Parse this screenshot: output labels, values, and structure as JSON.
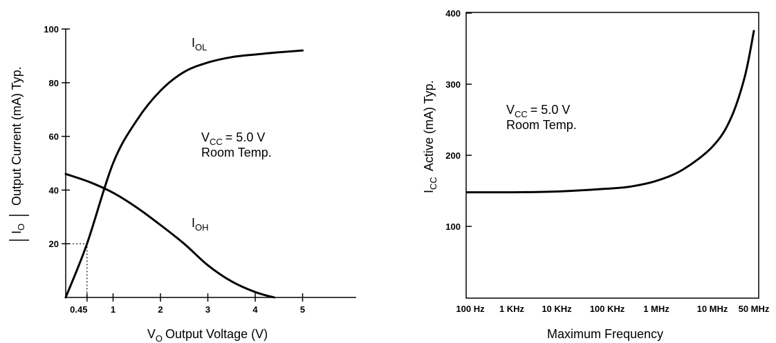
{
  "chart_data": [
    {
      "type": "line",
      "ylabel_bars": "I",
      "ylabel_sub": "O",
      "ylabel": "Output Current (mA) Typ.",
      "xlabel_main": "V",
      "xlabel_sub": "O",
      "xlabel": "Output Voltage (V)",
      "xlim": [
        0,
        6
      ],
      "ylim": [
        0,
        100
      ],
      "yticks": [
        20,
        40,
        60,
        80,
        100
      ],
      "xticks": [
        {
          "value": 0.45,
          "label": "0.45"
        },
        {
          "value": 1,
          "label": "1"
        },
        {
          "value": 2,
          "label": "2"
        },
        {
          "value": 3,
          "label": "3"
        },
        {
          "value": 4,
          "label": "4"
        },
        {
          "value": 5,
          "label": "5"
        }
      ],
      "guide_point": {
        "x": 0.45,
        "y": 20
      },
      "annotation": {
        "line1_main": "V",
        "line1_sub": "CC",
        "line1_rest": "= 5.0 V",
        "line2": "Room Temp."
      },
      "series": [
        {
          "label_main": "I",
          "label_sub": "OL",
          "x": [
            0,
            0.45,
            1,
            1.5,
            2,
            2.5,
            3,
            3.5,
            4,
            4.5,
            5
          ],
          "y": [
            0,
            20,
            50,
            66,
            77,
            84,
            87.5,
            89.5,
            90.5,
            91.3,
            92
          ]
        },
        {
          "label_main": "I",
          "label_sub": "OH",
          "x": [
            0,
            0.5,
            1,
            1.5,
            2,
            2.5,
            3,
            3.5,
            4,
            4.4
          ],
          "y": [
            46,
            43,
            39,
            33.5,
            27,
            20,
            12,
            6,
            2,
            0
          ]
        }
      ]
    },
    {
      "type": "line",
      "ylabel_main": "I",
      "ylabel_sub": "CC",
      "ylabel": "Active (mA) Typ.",
      "xlabel": "Maximum Frequency",
      "x_scale": "log",
      "ylim": [
        0,
        400
      ],
      "yticks": [
        100,
        200,
        300,
        400
      ],
      "xticks": [
        {
          "value": 100,
          "label": "100 Hz"
        },
        {
          "value": 1000,
          "label": "1 KHz"
        },
        {
          "value": 10000,
          "label": "10 KHz"
        },
        {
          "value": 100000,
          "label": "100 KHz"
        },
        {
          "value": 1000000,
          "label": "1 MHz"
        },
        {
          "value": 10000000,
          "label": "10 MHz"
        },
        {
          "value": 50000000,
          "label": "50 MHz"
        }
      ],
      "annotation": {
        "line1_main": "V",
        "line1_sub": "CC",
        "line1_rest": "= 5.0 V",
        "line2": "Room Temp."
      },
      "series": [
        {
          "x": [
            100,
            1000,
            10000,
            100000,
            300000,
            1000000,
            3000000,
            10000000,
            20000000,
            35000000,
            50000000
          ],
          "y": [
            148,
            148,
            149,
            153,
            156,
            164,
            180,
            212,
            250,
            310,
            375
          ]
        }
      ]
    }
  ]
}
